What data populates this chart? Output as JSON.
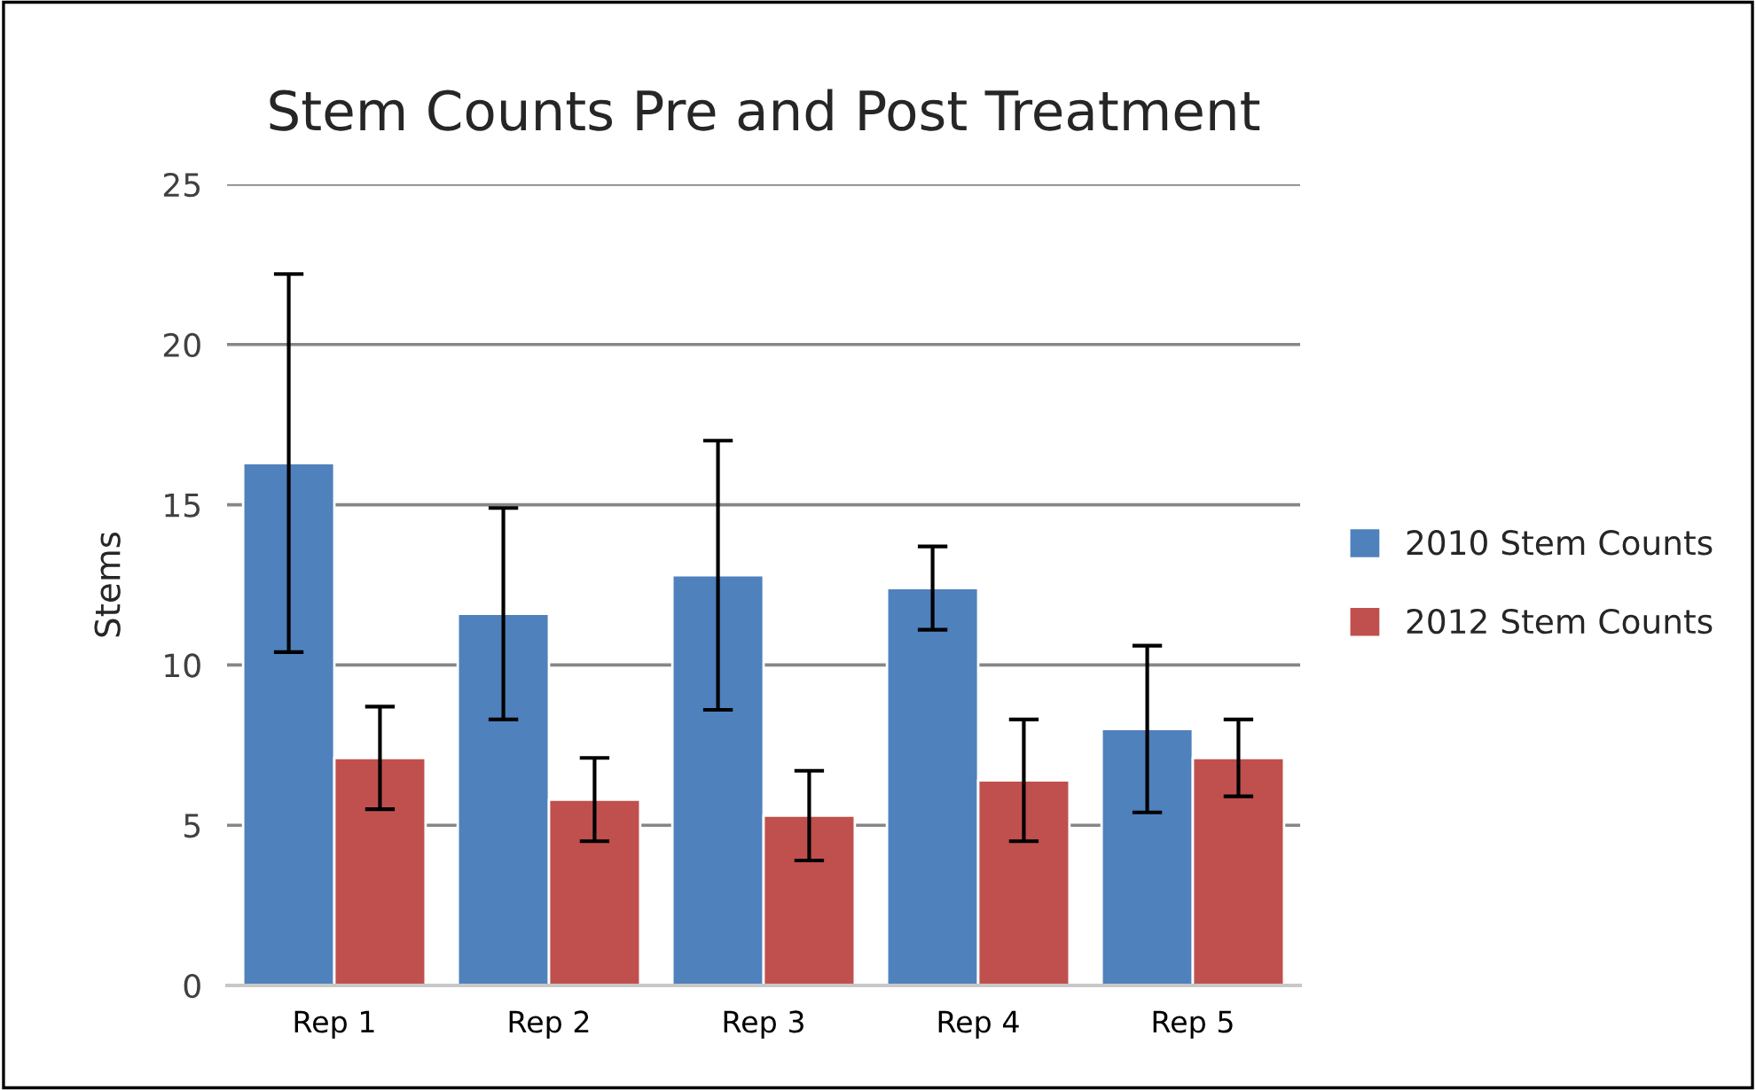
{
  "chart_data": {
    "type": "bar",
    "title": "Stem Counts Pre and Post Treatment",
    "ylabel": "Stems",
    "categories": [
      "Rep 1",
      "Rep 2",
      "Rep 3",
      "Rep 4",
      "Rep 5"
    ],
    "series": [
      {
        "name": "2010 Stem Counts",
        "color": "#4f81bd",
        "values": [
          16.3,
          11.6,
          12.8,
          12.4,
          8.0
        ],
        "errors": [
          5.9,
          3.3,
          4.2,
          1.3,
          2.6
        ]
      },
      {
        "name": "2012 Stem Counts",
        "color": "#c0504d",
        "values": [
          7.1,
          5.8,
          5.3,
          6.4,
          7.1
        ],
        "errors": [
          1.6,
          1.3,
          1.4,
          1.9,
          1.2
        ]
      }
    ],
    "ylim": [
      0,
      25
    ],
    "yticks": [
      0,
      5,
      10,
      15,
      20,
      25
    ],
    "grid": "y",
    "legend": "right"
  }
}
